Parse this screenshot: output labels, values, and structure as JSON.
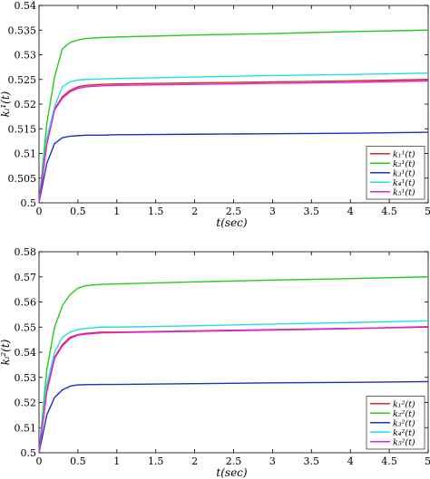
{
  "chart_data": [
    {
      "type": "line",
      "xlabel": "t(sec)",
      "ylabel": "kᵢ¹(t)",
      "xlim": [
        0,
        5
      ],
      "ylim": [
        0.5,
        0.54
      ],
      "xticks": [
        "0",
        "0.5",
        "1",
        "1.5",
        "2",
        "2.5",
        "3",
        "3.5",
        "4",
        "4.5",
        "5"
      ],
      "yticks": [
        "0.5",
        "0.505",
        "0.51",
        "0.515",
        "0.52",
        "0.525",
        "0.53",
        "0.535",
        "0.54"
      ],
      "grid": false,
      "legend_position": "bottom-right",
      "series": [
        {
          "name": "k₁¹(t)",
          "color": "#d62728",
          "x": [
            0,
            0.1,
            0.2,
            0.3,
            0.4,
            0.5,
            0.6,
            0.8,
            1,
            2,
            3,
            4,
            5
          ],
          "y": [
            0.5,
            0.512,
            0.519,
            0.5215,
            0.5228,
            0.5235,
            0.5238,
            0.524,
            0.5241,
            0.5243,
            0.5245,
            0.5247,
            0.525
          ]
        },
        {
          "name": "k₂¹(t)",
          "color": "#22cc22",
          "x": [
            0,
            0.1,
            0.2,
            0.3,
            0.4,
            0.5,
            0.6,
            0.8,
            1,
            2,
            3,
            4,
            5
          ],
          "y": [
            0.5,
            0.516,
            0.5255,
            0.5312,
            0.5325,
            0.533,
            0.5333,
            0.5335,
            0.5336,
            0.534,
            0.5343,
            0.5347,
            0.535
          ]
        },
        {
          "name": "k₃¹(t)",
          "color": "#1f2fbf",
          "x": [
            0,
            0.1,
            0.2,
            0.3,
            0.4,
            0.5,
            0.6,
            0.8,
            1,
            2,
            3,
            4,
            5
          ],
          "y": [
            0.5,
            0.508,
            0.512,
            0.5132,
            0.5135,
            0.5136,
            0.5137,
            0.5137,
            0.5138,
            0.5139,
            0.514,
            0.5141,
            0.5143
          ]
        },
        {
          "name": "k₄¹(t)",
          "color": "#22e0e0",
          "x": [
            0,
            0.1,
            0.2,
            0.3,
            0.4,
            0.5,
            0.6,
            0.8,
            1,
            2,
            3,
            4,
            5
          ],
          "y": [
            0.5,
            0.513,
            0.5195,
            0.5235,
            0.5245,
            0.5249,
            0.525,
            0.5251,
            0.5252,
            0.5255,
            0.5258,
            0.526,
            0.5263
          ]
        },
        {
          "name": "k₅¹(t)",
          "color": "#e020e0",
          "x": [
            0,
            0.1,
            0.2,
            0.3,
            0.4,
            0.5,
            0.6,
            0.8,
            1,
            2,
            3,
            4,
            5
          ],
          "y": [
            0.5,
            0.5118,
            0.5188,
            0.5212,
            0.5225,
            0.5232,
            0.5235,
            0.5237,
            0.5238,
            0.524,
            0.5242,
            0.5244,
            0.5247
          ]
        }
      ]
    },
    {
      "type": "line",
      "xlabel": "t(sec)",
      "ylabel": "kᵢ²(t)",
      "xlim": [
        0,
        5
      ],
      "ylim": [
        0.5,
        0.58
      ],
      "xticks": [
        "0",
        "0.5",
        "1",
        "1.5",
        "2",
        "2.5",
        "3",
        "3.5",
        "4",
        "4.5",
        "5"
      ],
      "yticks": [
        "0.5",
        "0.51",
        "0.52",
        "0.53",
        "0.54",
        "0.55",
        "0.56",
        "0.57",
        "0.58"
      ],
      "grid": false,
      "legend_position": "bottom-right",
      "series": [
        {
          "name": "k₁²(t)",
          "color": "#d62728",
          "x": [
            0,
            0.1,
            0.2,
            0.3,
            0.4,
            0.5,
            0.6,
            0.8,
            1,
            2,
            3,
            4,
            5
          ],
          "y": [
            0.5,
            0.525,
            0.538,
            0.543,
            0.546,
            0.547,
            0.5475,
            0.548,
            0.548,
            0.5485,
            0.549,
            0.5495,
            0.55
          ]
        },
        {
          "name": "k₂²(t)",
          "color": "#22cc22",
          "x": [
            0,
            0.1,
            0.2,
            0.3,
            0.4,
            0.5,
            0.6,
            0.8,
            1,
            2,
            3,
            4,
            5
          ],
          "y": [
            0.5,
            0.533,
            0.55,
            0.5585,
            0.563,
            0.5655,
            0.5665,
            0.567,
            0.5672,
            0.568,
            0.5687,
            0.5693,
            0.57
          ]
        },
        {
          "name": "k₃²(t)",
          "color": "#1f2fbf",
          "x": [
            0,
            0.1,
            0.2,
            0.3,
            0.4,
            0.5,
            0.6,
            0.8,
            1,
            2,
            3,
            4,
            5
          ],
          "y": [
            0.5,
            0.515,
            0.522,
            0.525,
            0.5265,
            0.527,
            0.5271,
            0.5272,
            0.5272,
            0.5275,
            0.5278,
            0.528,
            0.5283
          ]
        },
        {
          "name": "k₄²(t)",
          "color": "#22e0e0",
          "x": [
            0,
            0.1,
            0.2,
            0.3,
            0.4,
            0.5,
            0.6,
            0.8,
            1,
            2,
            3,
            4,
            5
          ],
          "y": [
            0.5,
            0.527,
            0.54,
            0.546,
            0.548,
            0.549,
            0.5495,
            0.55,
            0.55,
            0.5505,
            0.5512,
            0.5518,
            0.5525
          ]
        },
        {
          "name": "k₅²(t)",
          "color": "#e020e0",
          "x": [
            0,
            0.1,
            0.2,
            0.3,
            0.4,
            0.5,
            0.6,
            0.8,
            1,
            2,
            3,
            4,
            5
          ],
          "y": [
            0.5,
            0.524,
            0.5375,
            0.5425,
            0.5455,
            0.5468,
            0.5472,
            0.5477,
            0.5478,
            0.5483,
            0.5488,
            0.5494,
            0.5502
          ]
        }
      ]
    }
  ]
}
